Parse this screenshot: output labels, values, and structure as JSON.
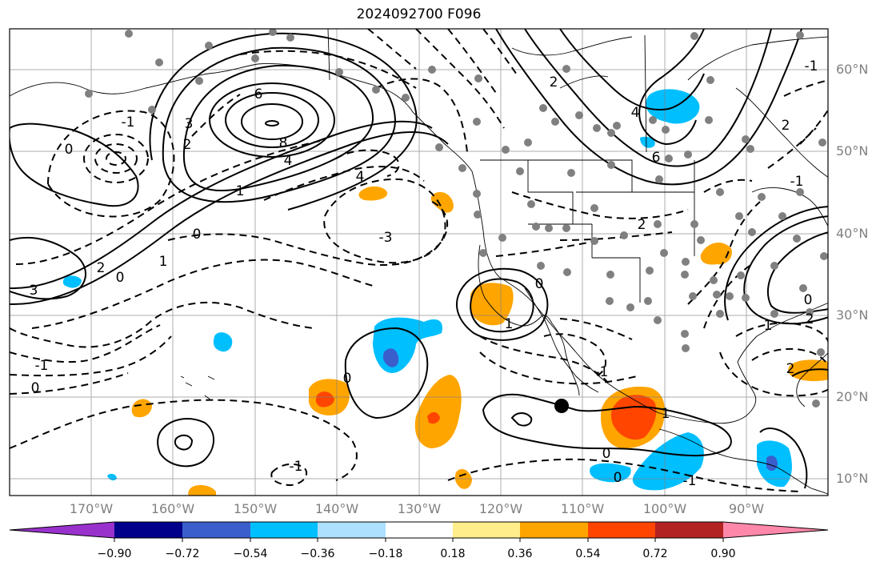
{
  "title": "2024092700 F096",
  "map": {
    "lat_labels": [
      "60°N",
      "50°N",
      "40°N",
      "30°N",
      "20°N",
      "10°N"
    ],
    "lon_labels": [
      "170°W",
      "160°W",
      "150°W",
      "140°W",
      "130°W",
      "120°W",
      "110°W",
      "100°W",
      "90°W"
    ],
    "contour_labels": [
      "6",
      "8",
      "4",
      "3",
      "2",
      "1",
      "0",
      "0",
      "2",
      "1",
      "-1",
      "0",
      "-3",
      "4",
      "0",
      "-1",
      "0",
      "-1",
      "1",
      "-1",
      "0",
      "-1",
      "3",
      "2",
      "2",
      "2",
      "1",
      "0",
      "-1",
      "6",
      "4",
      "2",
      "0",
      "1",
      "2",
      "-1",
      "0"
    ],
    "colors": {
      "contour": "#000000",
      "coast": "#000000",
      "grid": "#808080",
      "station": "#808080"
    }
  },
  "colorbar": {
    "ticks": [
      "−0.90",
      "−0.72",
      "−0.54",
      "−0.36",
      "−0.18",
      "0.18",
      "0.36",
      "0.54",
      "0.72",
      "0.90"
    ],
    "colors": [
      "#9932CC",
      "#00008B",
      "#3A5FCD",
      "#00BFFF",
      "#ADDFFF",
      "#FFFFFF",
      "#FFEC8B",
      "#FFA500",
      "#FF4500",
      "#B22222",
      "#FF88AA"
    ]
  }
}
